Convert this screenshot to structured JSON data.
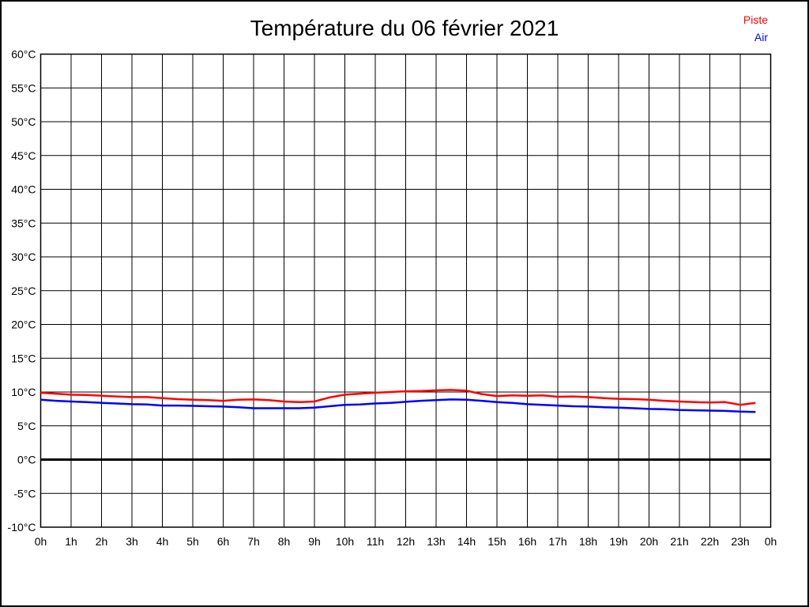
{
  "page": {
    "background": "#ffffff",
    "border_color": "#000000"
  },
  "header": {
    "title": "Température du 06 février 2021"
  },
  "legend": {
    "position": "top-right",
    "items": [
      {
        "label": "Piste",
        "color": "#ff0000"
      },
      {
        "label": "Air",
        "color": "#0000ff"
      }
    ]
  },
  "chart_data": {
    "type": "line",
    "title": "Température du 06 février 2021",
    "xlabel": "",
    "ylabel": "",
    "xlim": [
      0,
      24
    ],
    "ylim": [
      -10,
      60
    ],
    "grid": true,
    "zero_line_emphasized": true,
    "x_unit": "hours",
    "y_unit": "°C",
    "xticks": {
      "values": [
        0,
        1,
        2,
        3,
        4,
        5,
        6,
        7,
        8,
        9,
        10,
        11,
        12,
        13,
        14,
        15,
        16,
        17,
        18,
        19,
        20,
        21,
        22,
        23,
        24
      ],
      "labels": [
        "0h",
        "1h",
        "2h",
        "3h",
        "4h",
        "5h",
        "6h",
        "7h",
        "8h",
        "9h",
        "10h",
        "11h",
        "12h",
        "13h",
        "14h",
        "15h",
        "16h",
        "17h",
        "18h",
        "19h",
        "20h",
        "21h",
        "22h",
        "23h",
        "0h"
      ]
    },
    "yticks": {
      "values": [
        -10,
        -5,
        0,
        5,
        10,
        15,
        20,
        25,
        30,
        35,
        40,
        45,
        50,
        55,
        60
      ],
      "labels": [
        "-10°C",
        "-5°C",
        "0°C",
        "5°C",
        "10°C",
        "15°C",
        "20°C",
        "25°C",
        "30°C",
        "35°C",
        "40°C",
        "45°C",
        "50°C",
        "55°C",
        "60°C"
      ]
    },
    "x": [
      0,
      0.5,
      1,
      1.5,
      2,
      2.5,
      3,
      3.5,
      4,
      4.5,
      5,
      5.5,
      6,
      6.5,
      7,
      7.5,
      8,
      8.5,
      9,
      9.5,
      10,
      10.5,
      11,
      11.5,
      12,
      12.5,
      13,
      13.5,
      14,
      14.5,
      15,
      15.5,
      16,
      16.5,
      17,
      17.5,
      18,
      18.5,
      19,
      19.5,
      20,
      20.5,
      21,
      21.5,
      22,
      22.5,
      23,
      23.5
    ],
    "series": [
      {
        "name": "Piste",
        "color": "#ff0000",
        "values": [
          9.9,
          9.75,
          9.6,
          9.55,
          9.45,
          9.35,
          9.25,
          9.25,
          9.1,
          8.95,
          8.85,
          8.8,
          8.7,
          8.85,
          8.9,
          8.8,
          8.6,
          8.5,
          8.6,
          9.2,
          9.6,
          9.75,
          9.9,
          10.0,
          10.1,
          10.15,
          10.25,
          10.3,
          10.2,
          9.7,
          9.4,
          9.5,
          9.45,
          9.5,
          9.3,
          9.35,
          9.25,
          9.1,
          9.0,
          8.95,
          8.85,
          8.7,
          8.6,
          8.5,
          8.45,
          8.5,
          8.1,
          8.4
        ]
      },
      {
        "name": "Air",
        "color": "#0000ff",
        "values": [
          8.85,
          8.7,
          8.6,
          8.5,
          8.4,
          8.3,
          8.2,
          8.15,
          8.0,
          8.0,
          7.95,
          7.9,
          7.85,
          7.75,
          7.6,
          7.6,
          7.6,
          7.6,
          7.7,
          7.9,
          8.1,
          8.15,
          8.3,
          8.4,
          8.55,
          8.7,
          8.8,
          8.9,
          8.85,
          8.7,
          8.5,
          8.4,
          8.2,
          8.1,
          8.0,
          7.9,
          7.85,
          7.75,
          7.7,
          7.6,
          7.5,
          7.45,
          7.35,
          7.3,
          7.25,
          7.2,
          7.1,
          7.05
        ]
      }
    ]
  }
}
